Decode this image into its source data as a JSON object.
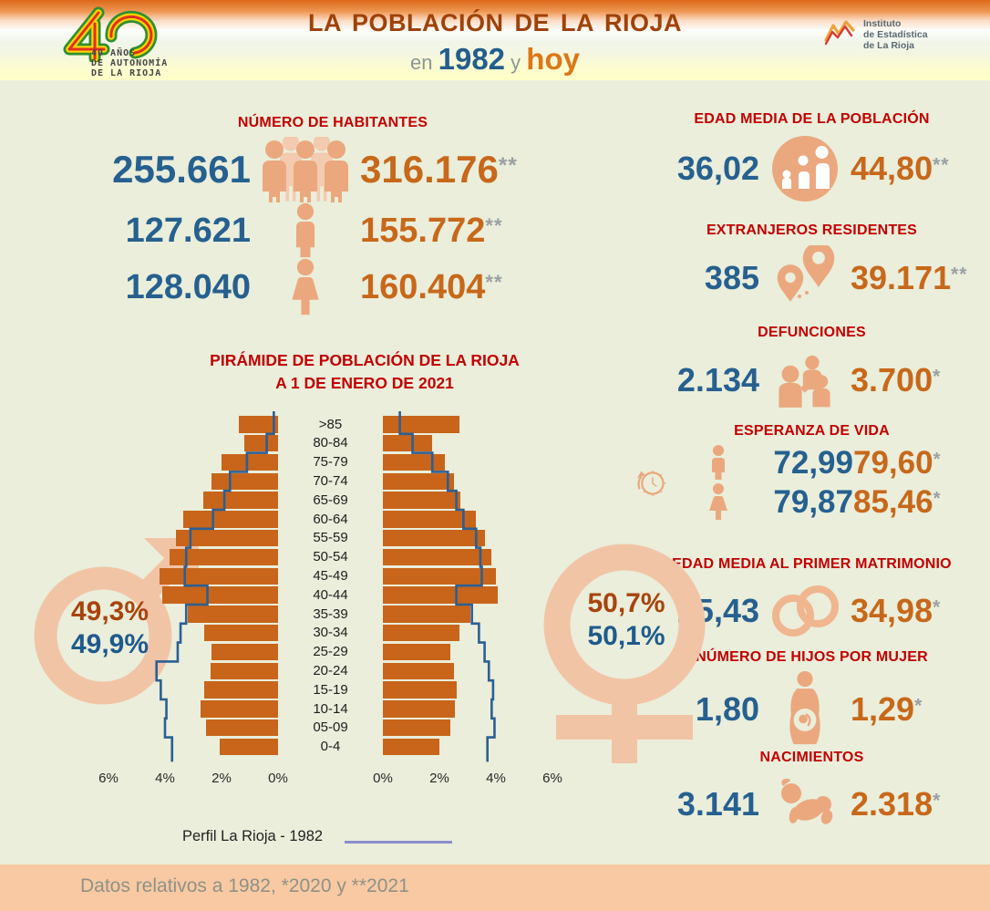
{
  "header": {
    "title": "LA POBLACIÓN  DE LA RIOJA",
    "subtitle": {
      "en": "en ",
      "year": "1982",
      "y": " y ",
      "hoy": "hoy"
    },
    "logo40_text": "40 AÑOS\nDE AUTONOMÍA\nDE LA RIOJA",
    "institute": {
      "line1": "Instituto",
      "line2": "de Estadística",
      "line3": "de La Rioja"
    }
  },
  "habitantes": {
    "title": "NÚMERO DE HABITANTES",
    "rows": [
      {
        "v1982": "255.661",
        "icon": "people-group-icon",
        "today": "316.176",
        "asterisks": "**"
      },
      {
        "v1982": "127.621",
        "icon": "man-icon",
        "today": "155.772",
        "asterisks": "**"
      },
      {
        "v1982": "128.040",
        "icon": "woman-icon",
        "today": "160.404",
        "asterisks": "**"
      }
    ]
  },
  "pyramid": {
    "title_line1": "PIRÁMIDE DE POBLACIÓN DE LA RIOJA",
    "title_line2": "A 1 DE ENERO DE 2021",
    "male_share": {
      "today": "49,3%",
      "v1982": "49,9%"
    },
    "female_share": {
      "today": "50,7%",
      "v1982": "50,1%"
    },
    "legend": "Perfil La Rioja - 1982",
    "axis_left": [
      "6%",
      "4%",
      "2%",
      "0%"
    ],
    "axis_right": [
      "0%",
      "2%",
      "4%",
      "6%"
    ]
  },
  "chart_data": {
    "type": "bar",
    "subtype": "population-pyramid",
    "title": "PIRÁMIDE DE POBLACIÓN DE LA RIOJA A 1 DE ENERO DE 2021",
    "categories": [
      ">85",
      "80-84",
      "75-79",
      "70-74",
      "65-69",
      "60-64",
      "55-59",
      "50-54",
      "45-49",
      "40-44",
      "35-39",
      "30-34",
      "25-29",
      "20-24",
      "15-19",
      "10-14",
      "05-09",
      "0-4"
    ],
    "unit": "% of total population per side",
    "xlim_each_side": [
      0,
      6
    ],
    "series": [
      {
        "name": "Hombres 2021",
        "style": "bar-left",
        "color": "#c8651a",
        "values": [
          1.4,
          1.2,
          2.0,
          2.35,
          2.65,
          3.35,
          3.6,
          3.85,
          4.2,
          4.1,
          3.2,
          2.6,
          2.35,
          2.4,
          2.6,
          2.75,
          2.55,
          2.05
        ]
      },
      {
        "name": "Mujeres 2021",
        "style": "bar-right",
        "color": "#c8651a",
        "values": [
          2.7,
          1.75,
          2.2,
          2.5,
          2.75,
          3.3,
          3.6,
          3.85,
          4.0,
          4.05,
          3.1,
          2.7,
          2.4,
          2.5,
          2.6,
          2.55,
          2.4,
          2.0
        ]
      },
      {
        "name": "Perfil Hombres 1982",
        "style": "step-left",
        "color": "#2b5f93",
        "values": [
          0.15,
          0.4,
          1.1,
          1.7,
          1.9,
          2.3,
          3.1,
          3.25,
          3.3,
          2.5,
          3.25,
          3.45,
          3.55,
          4.3,
          4.15,
          3.95,
          4.0,
          3.75
        ]
      },
      {
        "name": "Perfil Mujeres 1982",
        "style": "step-right",
        "color": "#2b5f93",
        "values": [
          0.6,
          1.05,
          1.75,
          2.3,
          2.6,
          2.85,
          3.3,
          3.45,
          3.5,
          2.6,
          3.15,
          3.4,
          3.6,
          3.75,
          3.9,
          3.85,
          3.95,
          3.7
        ]
      }
    ],
    "legend_label": "Perfil La Rioja - 1982",
    "axis_ticks_percent": [
      0,
      2,
      4,
      6
    ]
  },
  "stats": {
    "edad_media": {
      "title": "EDAD MEDIA DE LA POBLACIÓN",
      "v1982": "36,02",
      "today": "44,80",
      "asterisks": "**"
    },
    "extranjeros": {
      "title": "EXTRANJEROS RESIDENTES",
      "v1982": "385",
      "today": "39.171",
      "asterisks": "**"
    },
    "defunciones": {
      "title": "DEFUNCIONES",
      "v1982": "2.134",
      "today": "3.700",
      "asterisks": "*"
    },
    "esperanza": {
      "title": "ESPERANZA DE VIDA",
      "male_1982": "72,99",
      "male_today": "79,60",
      "female_1982": "79,87",
      "female_today": "85,46",
      "asterisk": "*"
    },
    "matrimonio": {
      "title": "EDAD MEDIA AL PRIMER MATRIMONIO",
      "v1982": "25,43",
      "today": "34,98",
      "asterisks": "*"
    },
    "hijos": {
      "title": "NÚMERO DE HIJOS POR MUJER",
      "v1982": "1,80",
      "today": "1,29",
      "asterisks": "*"
    },
    "nacimientos": {
      "title": "NACIMIENTOS",
      "v1982": "3.141",
      "today": "2.318",
      "asterisks": "*"
    }
  },
  "footer": {
    "note": "Datos relativos a 1982, *2020 y **2021"
  },
  "colors": {
    "value_1982": "#26608f",
    "value_today": "#c7681a",
    "section_title": "#c30000",
    "bar": "#c8651a",
    "profile_line": "#2b5f93",
    "legend_line": "#8c8ccd",
    "icon_peach": "#eba87e",
    "icon_peach_light": "#f3cbb0",
    "symbol_peach": "#f2c4a6",
    "background": "#eaeedb",
    "footer_bg": "#f8c9a3"
  }
}
